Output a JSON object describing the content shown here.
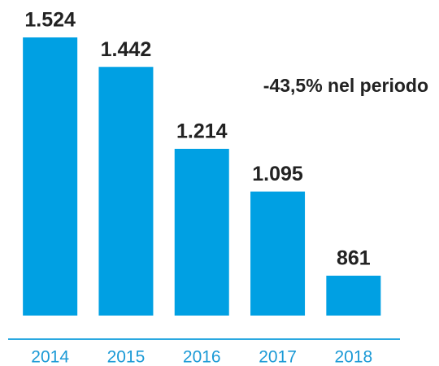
{
  "chart_data": {
    "type": "bar",
    "annotation": "-43,5% nel periodo",
    "categories": [
      "2014",
      "2015",
      "2016",
      "2017",
      "2018"
    ],
    "values": [
      1524,
      1442,
      1214,
      1095,
      861
    ],
    "value_labels": [
      "1.524",
      "1.442",
      "1.214",
      "1.095",
      "861"
    ],
    "color": "#00a0e3",
    "ylim": [
      750,
      1524
    ]
  }
}
